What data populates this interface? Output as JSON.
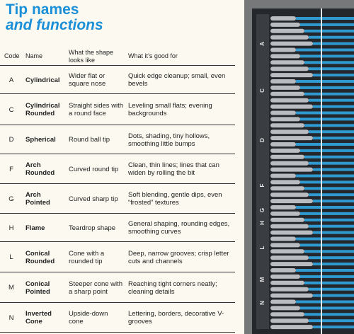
{
  "header": {
    "title": "Tip names",
    "subtitle": "and functions"
  },
  "table": {
    "header": [
      "Code",
      "Name",
      "What the shape looks like",
      "What it’s good for"
    ],
    "rows": [
      [
        "A",
        "Cylindrical",
        "Wider flat or square nose",
        "Quick edge cleanup; small, even bevels"
      ],
      [
        "C",
        "Cylindrical Rounded",
        "Straight sides with a round face",
        "Leveling small flats; evening backgrounds"
      ],
      [
        "D",
        "Spherical",
        "Round ball tip",
        "Dots, shading, tiny hollows, smoothing little bumps"
      ],
      [
        "F",
        "Arch Rounded",
        "Curved round tip",
        "Clean, thin lines; lines that can widen by rolling the bit"
      ],
      [
        "G",
        "Arch Pointed",
        "Curved sharp tip",
        "Soft blending, gentle dips, even “frosted” textures"
      ],
      [
        "H",
        "Flame",
        "Teardrop shape",
        "General shaping, rounding edges, smoothing curves"
      ],
      [
        "L",
        "Conical Rounded",
        "Cone with a rounded tip",
        "Deep, narrow grooves; crisp letter cuts and channels"
      ],
      [
        "M",
        "Conical Pointed",
        "Steeper cone with a sharp point",
        "Reaching tight corners neatly; cleaning details"
      ],
      [
        "N",
        "Inverted Cone",
        "Upside-down cone",
        "Lettering, borders, decorative V-grooves"
      ]
    ]
  },
  "tray_labels": [
    "A",
    "C",
    "D",
    "F",
    "G",
    "H",
    "L",
    "M",
    "N"
  ]
}
